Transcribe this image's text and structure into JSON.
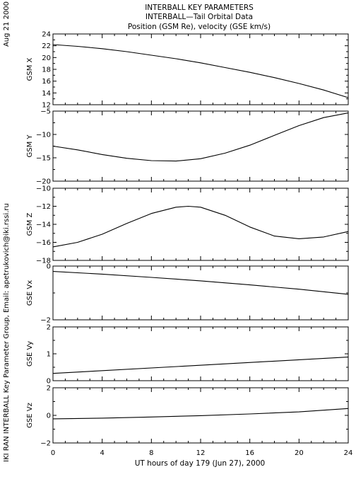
{
  "header": {
    "title_line1": "INTERBALL KEY PARAMETERS",
    "title_line2": "INTERBALL—Tail Orbital Data",
    "title_line3": "Position (GSM Re), velocity (GSE km/s)"
  },
  "side_labels": {
    "date": "Aug 21 2000",
    "credit": "IKI RAN INTERBALL Key Parameter Group, Email: apetrukovich@iki.rssi.ru"
  },
  "x_axis": {
    "label": "UT hours of day 179 (Jun 27), 2000",
    "range": [
      0,
      24
    ],
    "ticks": [
      0,
      4,
      8,
      12,
      16,
      20,
      24
    ],
    "tick_labels": [
      "0",
      "4",
      "8",
      "12",
      "16",
      "20",
      "24"
    ]
  },
  "chart_data": [
    {
      "type": "line",
      "ylabel": "GSM X",
      "ylim": [
        12,
        24
      ],
      "yticks": [
        12,
        14,
        16,
        18,
        20,
        22,
        24
      ],
      "ytick_labels": [
        "12",
        "14",
        "16",
        "18",
        "20",
        "22",
        "24"
      ],
      "series": [
        {
          "x": [
            0,
            2,
            4,
            6,
            8,
            10,
            12,
            14,
            16,
            18,
            20,
            22,
            24
          ],
          "values": [
            22.2,
            21.9,
            21.5,
            21.0,
            20.4,
            19.8,
            19.1,
            18.3,
            17.5,
            16.6,
            15.6,
            14.5,
            13.2
          ]
        }
      ]
    },
    {
      "type": "line",
      "ylabel": "GSM Y",
      "ylim": [
        -20,
        -5
      ],
      "yticks": [
        -20,
        -15,
        -10,
        -5
      ],
      "ytick_labels": [
        "−20",
        "−15",
        "−10",
        "−5"
      ],
      "series": [
        {
          "x": [
            0,
            2,
            4,
            6,
            8,
            10,
            12,
            14,
            16,
            18,
            20,
            22,
            24
          ],
          "values": [
            -12.5,
            -13.3,
            -14.3,
            -15.1,
            -15.6,
            -15.7,
            -15.2,
            -14.0,
            -12.3,
            -10.2,
            -8.1,
            -6.4,
            -5.4
          ]
        }
      ]
    },
    {
      "type": "line",
      "ylabel": "GSM Z",
      "ylim": [
        -18,
        -10
      ],
      "yticks": [
        -18,
        -16,
        -14,
        -12,
        -10
      ],
      "ytick_labels": [
        "−18",
        "−16",
        "−14",
        "−12",
        "−10"
      ],
      "series": [
        {
          "x": [
            0,
            2,
            4,
            6,
            8,
            10,
            11,
            12,
            14,
            16,
            18,
            20,
            22,
            24
          ],
          "values": [
            -16.5,
            -16.0,
            -15.1,
            -13.9,
            -12.8,
            -12.1,
            -12.0,
            -12.1,
            -13.0,
            -14.3,
            -15.3,
            -15.6,
            -15.4,
            -14.8
          ]
        }
      ]
    },
    {
      "type": "line",
      "ylabel": "GSE Vx",
      "ylim": [
        -2,
        0
      ],
      "yticks": [
        -2,
        0
      ],
      "ytick_labels": [
        "−2",
        "0"
      ],
      "series": [
        {
          "x": [
            0,
            4,
            8,
            12,
            16,
            20,
            24
          ],
          "values": [
            -0.2,
            -0.3,
            -0.42,
            -0.55,
            -0.7,
            -0.86,
            -1.05
          ]
        }
      ]
    },
    {
      "type": "line",
      "ylabel": "GSE Vy",
      "ylim": [
        0,
        2
      ],
      "yticks": [
        0,
        1,
        2
      ],
      "ytick_labels": [
        "0",
        "1",
        "2"
      ],
      "series": [
        {
          "x": [
            0,
            24
          ],
          "values": [
            0.27,
            0.88
          ]
        }
      ]
    },
    {
      "type": "line",
      "ylabel": "GSE Vz",
      "ylim": [
        -2,
        2
      ],
      "yticks": [
        -2,
        0,
        2
      ],
      "ytick_labels": [
        "−2",
        "0",
        "2"
      ],
      "series": [
        {
          "x": [
            0,
            4,
            8,
            12,
            16,
            20,
            24
          ],
          "values": [
            -0.25,
            -0.2,
            -0.12,
            -0.02,
            0.1,
            0.25,
            0.5
          ]
        }
      ]
    }
  ]
}
